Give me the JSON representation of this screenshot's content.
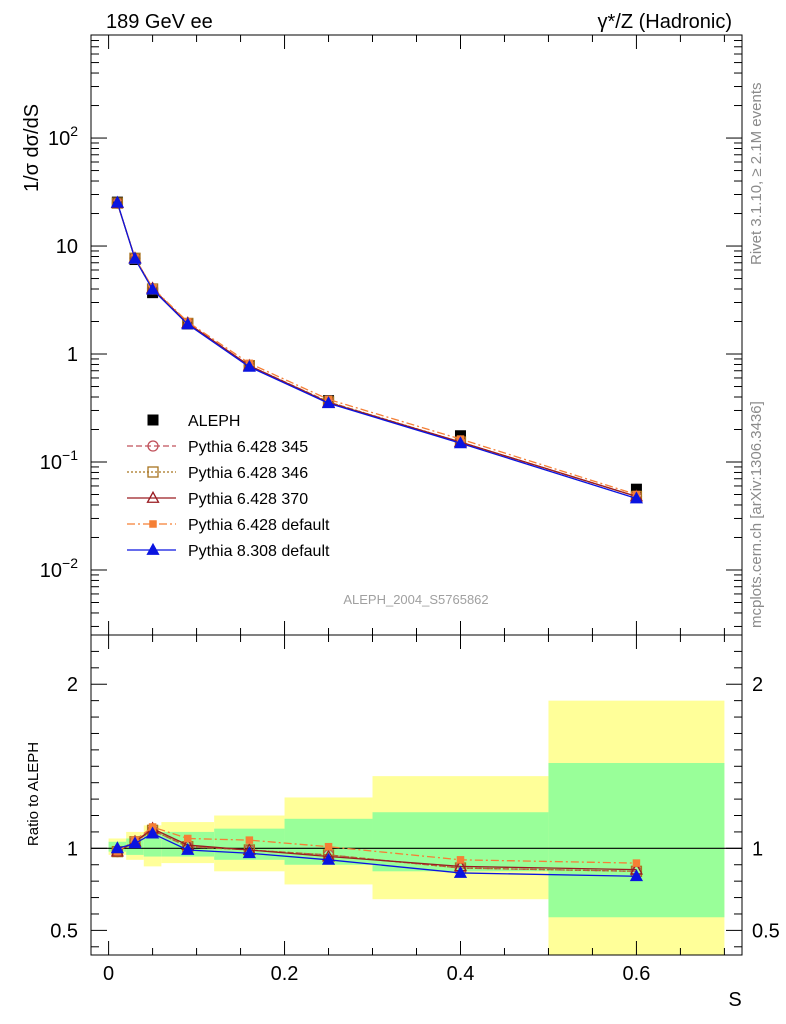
{
  "header": {
    "left": "189 GeV ee",
    "right": "γ*/Z (Hadronic)"
  },
  "side": {
    "rivet": "Rivet 3.1.10, ≥ 2.1M events",
    "mcplots": "mcplots.cern.ch [arXiv:1306.3436]"
  },
  "watermark": "ALEPH_2004_S5765862",
  "chart_data": [
    {
      "type": "scatter",
      "role": "main",
      "ylabel": "1/σ dσ/dS",
      "yscale": "log",
      "ylim": [
        0.0025,
        900
      ],
      "xlim": [
        -0.02,
        0.72
      ],
      "y_tick_labels": [
        {
          "base": "10",
          "exp": "−2",
          "value": 0.01
        },
        {
          "base": "10",
          "exp": "−1",
          "value": 0.1
        },
        {
          "base": "1",
          "exp": "",
          "value": 1
        },
        {
          "base": "10",
          "exp": "",
          "value": 10
        },
        {
          "base": "10",
          "exp": "2",
          "value": 100
        }
      ],
      "x": [
        0.01,
        0.03,
        0.05,
        0.09,
        0.16,
        0.25,
        0.4,
        0.6
      ],
      "series": [
        {
          "name": "ALEPH",
          "marker": "square-filled",
          "color": "#000000",
          "values": [
            25.5,
            7.5,
            3.7,
            1.9,
            0.78,
            0.37,
            0.175,
            0.056
          ]
        },
        {
          "name": "Pythia 6.428 345",
          "marker": "circle-open",
          "line": "dashed",
          "color": "#c0505a",
          "values": [
            25.0,
            7.7,
            4.0,
            1.92,
            0.78,
            0.36,
            0.152,
            0.048
          ]
        },
        {
          "name": "Pythia 6.428 346",
          "marker": "square-open",
          "line": "dotted",
          "color": "#a8741f",
          "values": [
            25.0,
            7.7,
            4.0,
            1.92,
            0.78,
            0.36,
            0.153,
            0.048
          ]
        },
        {
          "name": "Pythia 6.428 370",
          "marker": "triangle-open",
          "line": "solid",
          "color": "#9a1c22",
          "values": [
            24.9,
            7.7,
            4.05,
            1.93,
            0.78,
            0.355,
            0.153,
            0.048
          ]
        },
        {
          "name": "Pythia 6.428 default",
          "marker": "square-filled-small",
          "line": "dashdot",
          "color": "#f57f35",
          "values": [
            25.0,
            7.75,
            4.1,
            1.98,
            0.82,
            0.38,
            0.163,
            0.05
          ]
        },
        {
          "name": "Pythia 8.308 default",
          "marker": "triangle-filled",
          "line": "solid",
          "color": "#0a14e0",
          "values": [
            25.2,
            7.6,
            3.95,
            1.88,
            0.76,
            0.35,
            0.149,
            0.046
          ]
        }
      ]
    },
    {
      "type": "line",
      "role": "ratio",
      "ylabel": "Ratio to ALEPH",
      "xlabel": "S",
      "ylim": [
        0.35,
        2.3
      ],
      "xlim": [
        -0.02,
        0.72
      ],
      "y_tick_labels": [
        "0.5",
        "1",
        "2"
      ],
      "y_tick_values": [
        0.5,
        1,
        2
      ],
      "x_tick_labels": [
        "0",
        "0.2",
        "0.4",
        "0.6"
      ],
      "x_tick_values": [
        0,
        0.2,
        0.4,
        0.6
      ],
      "bands": [
        {
          "x0": 0.0,
          "x1": 0.02,
          "yellow": [
            0.96,
            1.06
          ],
          "green": [
            0.98,
            1.04
          ]
        },
        {
          "x0": 0.02,
          "x1": 0.04,
          "yellow": [
            0.93,
            1.1
          ],
          "green": [
            0.96,
            1.06
          ]
        },
        {
          "x0": 0.04,
          "x1": 0.06,
          "yellow": [
            0.89,
            1.14
          ],
          "green": [
            0.95,
            1.09
          ]
        },
        {
          "x0": 0.06,
          "x1": 0.12,
          "yellow": [
            0.91,
            1.16
          ],
          "green": [
            0.95,
            1.1
          ]
        },
        {
          "x0": 0.12,
          "x1": 0.2,
          "yellow": [
            0.86,
            1.2
          ],
          "green": [
            0.93,
            1.12
          ]
        },
        {
          "x0": 0.2,
          "x1": 0.3,
          "yellow": [
            0.78,
            1.31
          ],
          "green": [
            0.9,
            1.18
          ]
        },
        {
          "x0": 0.3,
          "x1": 0.5,
          "yellow": [
            0.69,
            1.44
          ],
          "green": [
            0.86,
            1.22
          ]
        },
        {
          "x0": 0.5,
          "x1": 0.7,
          "yellow": [
            0.28,
            1.9
          ],
          "green": [
            0.58,
            1.52
          ]
        }
      ],
      "x": [
        0.01,
        0.03,
        0.05,
        0.09,
        0.16,
        0.25,
        0.4,
        0.6
      ],
      "series": [
        {
          "name": "Pythia 6.428 345",
          "marker": "circle-open",
          "line": "dashed",
          "color": "#c0505a",
          "values": [
            0.98,
            1.04,
            1.11,
            1.01,
            0.99,
            0.96,
            0.88,
            0.86
          ]
        },
        {
          "name": "Pythia 6.428 346",
          "marker": "square-open",
          "line": "dotted",
          "color": "#a8741f",
          "values": [
            0.98,
            1.04,
            1.11,
            1.01,
            0.99,
            0.96,
            0.88,
            0.86
          ]
        },
        {
          "name": "Pythia 6.428 370",
          "marker": "triangle-open",
          "line": "solid",
          "color": "#9a1c22",
          "values": [
            0.98,
            1.04,
            1.12,
            1.02,
            0.99,
            0.95,
            0.89,
            0.87
          ]
        },
        {
          "name": "Pythia 6.428 default",
          "marker": "square-filled-small",
          "line": "dashdot",
          "color": "#f57f35",
          "values": [
            0.98,
            1.05,
            1.13,
            1.06,
            1.05,
            1.01,
            0.93,
            0.91
          ]
        },
        {
          "name": "Pythia 8.308 default",
          "marker": "triangle-filled",
          "line": "solid",
          "color": "#0a14e0",
          "values": [
            1.0,
            1.03,
            1.09,
            0.99,
            0.97,
            0.93,
            0.85,
            0.83
          ]
        }
      ]
    }
  ]
}
